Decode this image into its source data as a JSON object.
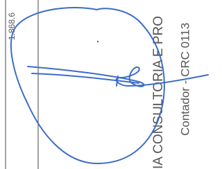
{
  "text": {
    "amount": "1.868.6",
    "company": "IA CONSULTORIA E PRO",
    "accountant": "Contador - CRC 0113"
  }
}
